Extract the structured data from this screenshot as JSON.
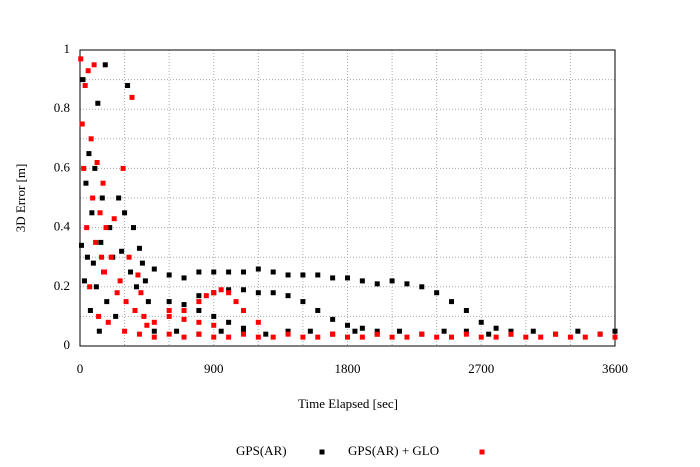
{
  "chart_data": {
    "type": "scatter",
    "x_label": "Time Elapsed [sec]",
    "y_label": "3D Error [m]",
    "xlim": [
      0,
      3600
    ],
    "ylim": [
      0,
      1
    ],
    "xticks": [
      0,
      900,
      1800,
      2700,
      3600
    ],
    "yticks": [
      0,
      0.2,
      0.4,
      0.6,
      0.8,
      1
    ],
    "x_minor_grid": [
      300,
      600,
      1200,
      1500,
      2100,
      2400,
      3000,
      3300
    ],
    "y_minor_grid": [
      0.1,
      0.3,
      0.5,
      0.7,
      0.9
    ],
    "grid": true,
    "legend": "bottom",
    "series": [
      {
        "name": "GPS(AR)",
        "color": "#000000",
        "x": [
          10,
          20,
          30,
          40,
          50,
          60,
          70,
          80,
          90,
          100,
          110,
          120,
          130,
          140,
          150,
          160,
          170,
          180,
          200,
          220,
          240,
          260,
          280,
          300,
          320,
          340,
          360,
          380,
          400,
          420,
          440,
          460,
          500,
          600,
          700,
          800,
          900,
          1000,
          1100,
          1200,
          1300,
          1400,
          1500,
          1600,
          1700,
          1800,
          1900,
          2000,
          2100,
          2200,
          2300,
          2400,
          2500,
          2600,
          2700,
          2800,
          2900,
          800,
          900,
          1000,
          1100,
          1200,
          1300,
          1400,
          1500,
          1600,
          1700,
          1800,
          1900,
          2000,
          600,
          700,
          800,
          900,
          1000,
          1100,
          500,
          650,
          800,
          950,
          1100,
          1250,
          1400,
          1550,
          1700,
          1850,
          2000,
          2150,
          2300,
          2450,
          2600,
          2750,
          2900,
          3050,
          3200,
          3350,
          3500,
          3600
        ],
        "values": [
          0.34,
          0.9,
          0.22,
          0.55,
          0.3,
          0.65,
          0.12,
          0.45,
          0.28,
          0.6,
          0.2,
          0.82,
          0.05,
          0.35,
          0.5,
          0.25,
          0.95,
          0.15,
          0.4,
          0.3,
          0.1,
          0.5,
          0.32,
          0.45,
          0.88,
          0.25,
          0.4,
          0.2,
          0.33,
          0.28,
          0.22,
          0.15,
          0.26,
          0.24,
          0.23,
          0.25,
          0.25,
          0.25,
          0.25,
          0.26,
          0.25,
          0.24,
          0.24,
          0.24,
          0.23,
          0.23,
          0.22,
          0.21,
          0.22,
          0.21,
          0.2,
          0.18,
          0.15,
          0.12,
          0.08,
          0.06,
          0.05,
          0.17,
          0.18,
          0.19,
          0.19,
          0.18,
          0.18,
          0.17,
          0.15,
          0.12,
          0.09,
          0.07,
          0.06,
          0.05,
          0.15,
          0.14,
          0.12,
          0.1,
          0.08,
          0.06,
          0.05,
          0.05,
          0.04,
          0.05,
          0.05,
          0.04,
          0.05,
          0.05,
          0.04,
          0.05,
          0.04,
          0.05,
          0.04,
          0.05,
          0.05,
          0.04,
          0.04,
          0.05,
          0.04,
          0.05,
          0.04,
          0.05
        ]
      },
      {
        "name": "GPS(AR) + GLO",
        "color": "#ff0000",
        "x": [
          5,
          15,
          25,
          35,
          45,
          55,
          65,
          75,
          85,
          95,
          105,
          115,
          125,
          135,
          145,
          155,
          165,
          175,
          190,
          210,
          230,
          250,
          270,
          290,
          310,
          330,
          350,
          370,
          390,
          410,
          430,
          450,
          600,
          700,
          800,
          850,
          900,
          950,
          1000,
          1050,
          1100,
          1200,
          500,
          600,
          700,
          800,
          900,
          300,
          400,
          500,
          600,
          700,
          800,
          900,
          1000,
          1100,
          1200,
          1300,
          1400,
          1500,
          1600,
          1700,
          1800,
          1900,
          2000,
          2100,
          2200,
          2300,
          2400,
          2500,
          2600,
          2700,
          2800,
          2900,
          3000,
          3100,
          3200,
          3300,
          3400,
          3500,
          3600
        ],
        "values": [
          0.97,
          0.75,
          0.6,
          0.88,
          0.4,
          0.93,
          0.2,
          0.7,
          0.5,
          0.95,
          0.35,
          0.62,
          0.1,
          0.45,
          0.3,
          0.55,
          0.25,
          0.4,
          0.08,
          0.3,
          0.43,
          0.18,
          0.22,
          0.6,
          0.15,
          0.3,
          0.84,
          0.12,
          0.24,
          0.18,
          0.1,
          0.07,
          0.12,
          0.12,
          0.15,
          0.17,
          0.18,
          0.19,
          0.18,
          0.15,
          0.12,
          0.08,
          0.08,
          0.1,
          0.09,
          0.08,
          0.07,
          0.05,
          0.04,
          0.03,
          0.04,
          0.03,
          0.04,
          0.03,
          0.03,
          0.04,
          0.03,
          0.03,
          0.04,
          0.03,
          0.03,
          0.04,
          0.03,
          0.03,
          0.04,
          0.03,
          0.03,
          0.04,
          0.03,
          0.03,
          0.04,
          0.03,
          0.03,
          0.04,
          0.03,
          0.03,
          0.04,
          0.03,
          0.03,
          0.04,
          0.03
        ]
      }
    ]
  }
}
